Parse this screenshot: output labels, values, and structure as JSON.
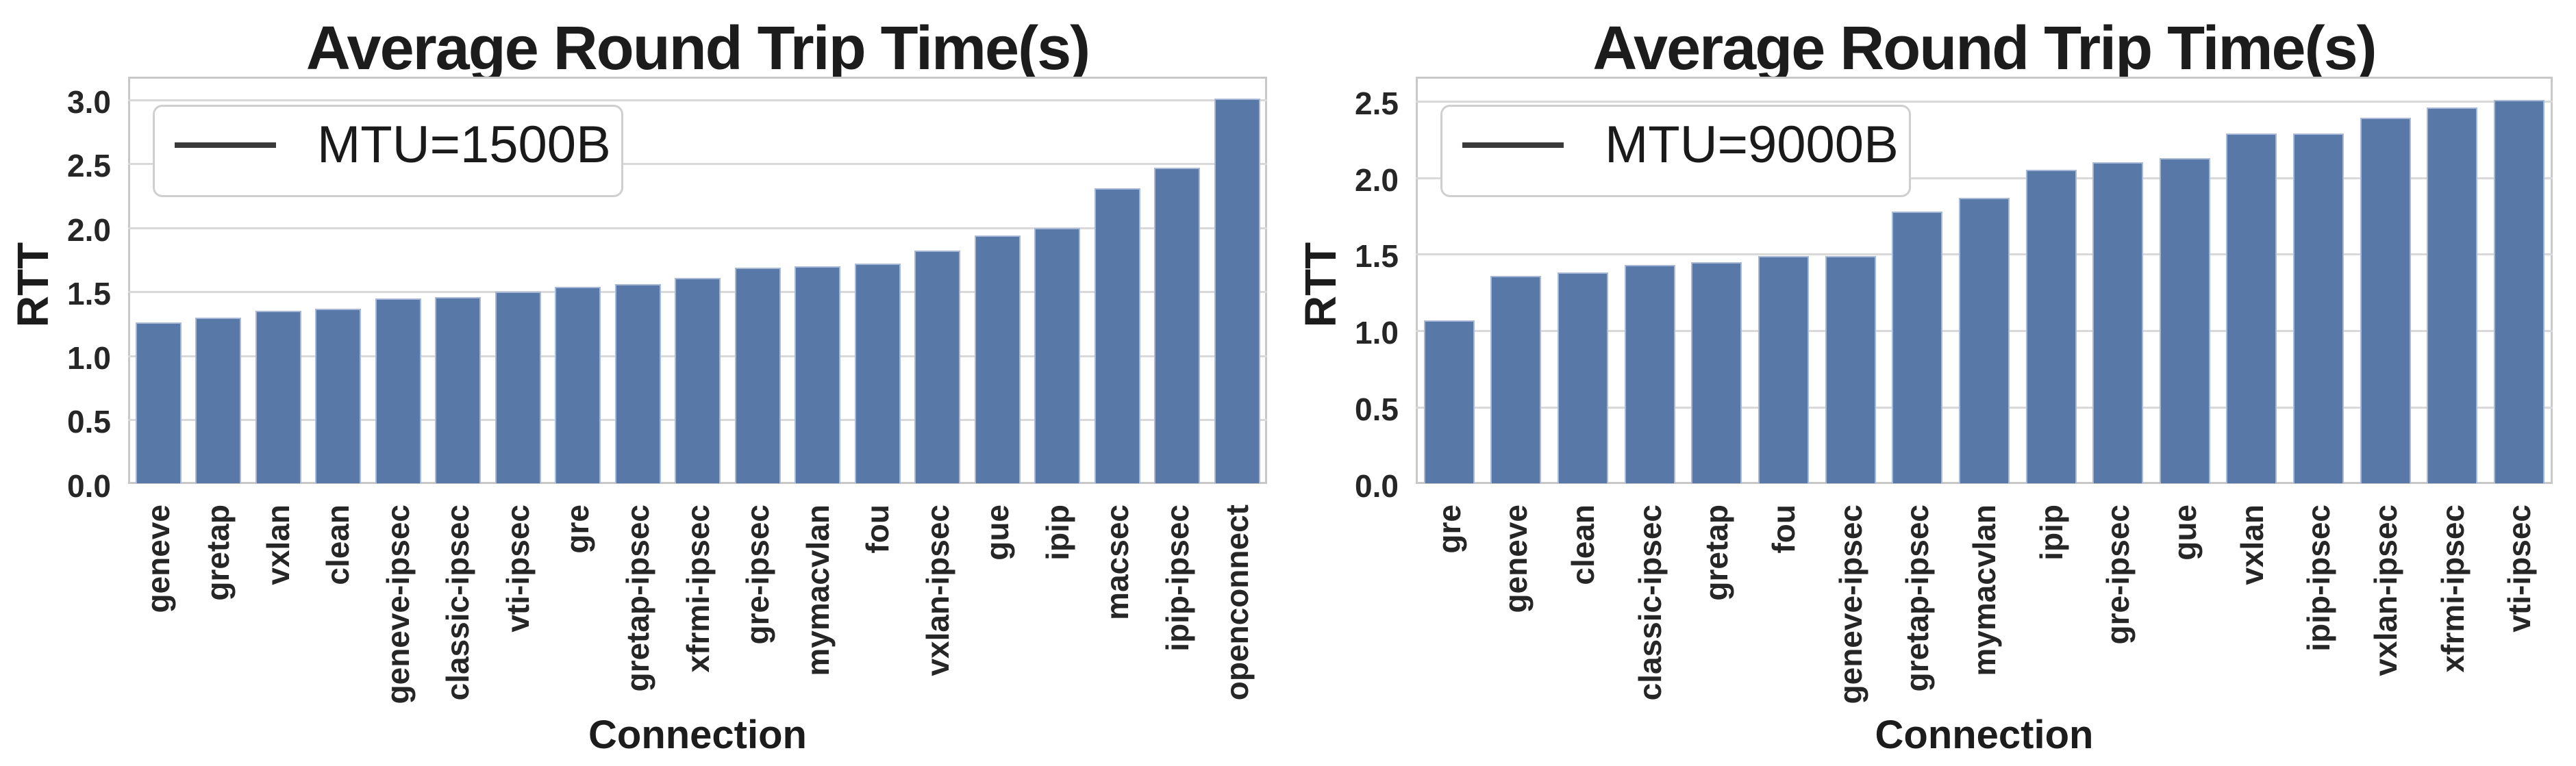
{
  "colors": {
    "bar_fill": "#5878a8",
    "bar_edge": "#a7b9d7",
    "gridline": "#d9d9d9",
    "spine": "#c8c8c8",
    "text": "#1c1c1c",
    "legend_line": "#3a3a3a",
    "background": "#ffffff"
  },
  "chart_data": [
    {
      "type": "bar",
      "title": "Average Round Trip Time(s)",
      "xlabel": "Connection",
      "ylabel": "RTT",
      "legend": {
        "label": "MTU=1500B",
        "position": "upper left",
        "marker": "line"
      },
      "grid": true,
      "legend_position": "upper left",
      "ylim": [
        0,
        3.18
      ],
      "yticks": [
        0.0,
        0.5,
        1.0,
        1.5,
        2.0,
        2.5,
        3.0
      ],
      "categories": [
        "geneve",
        "gretap",
        "vxlan",
        "clean",
        "geneve-ipsec",
        "classic-ipsec",
        "vti-ipsec",
        "gre",
        "gretap-ipsec",
        "xfrmi-ipsec",
        "gre-ipsec",
        "mymacvlan",
        "fou",
        "vxlan-ipsec",
        "gue",
        "ipip",
        "macsec",
        "ipip-ipsec",
        "openconnect"
      ],
      "values": [
        1.26,
        1.3,
        1.35,
        1.37,
        1.45,
        1.46,
        1.5,
        1.54,
        1.56,
        1.61,
        1.69,
        1.7,
        1.72,
        1.82,
        1.94,
        2.0,
        2.31,
        2.47,
        3.01
      ]
    },
    {
      "type": "bar",
      "title": "Average Round Trip Time(s)",
      "xlabel": "Connection",
      "ylabel": "RTT",
      "legend": {
        "label": "MTU=9000B",
        "position": "upper left",
        "marker": "line"
      },
      "grid": true,
      "legend_position": "upper left",
      "ylim": [
        0,
        2.66
      ],
      "yticks": [
        0.0,
        0.5,
        1.0,
        1.5,
        2.0,
        2.5
      ],
      "categories": [
        "gre",
        "geneve",
        "clean",
        "classic-ipsec",
        "gretap",
        "fou",
        "geneve-ipsec",
        "gretap-ipsec",
        "mymacvlan",
        "ipip",
        "gre-ipsec",
        "gue",
        "vxlan",
        "ipip-ipsec",
        "vxlan-ipsec",
        "xfrmi-ipsec",
        "vti-ipsec"
      ],
      "values": [
        1.07,
        1.36,
        1.38,
        1.43,
        1.45,
        1.49,
        1.49,
        1.78,
        1.87,
        2.05,
        2.1,
        2.13,
        2.29,
        2.29,
        2.39,
        2.46,
        2.51
      ]
    }
  ]
}
